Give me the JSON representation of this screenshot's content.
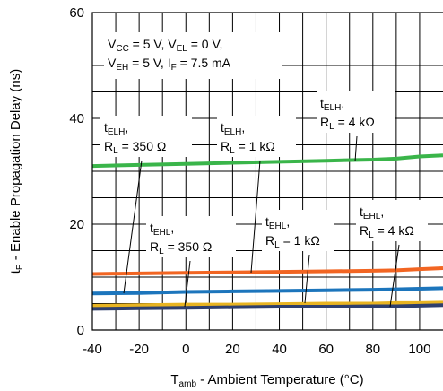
{
  "chart_data": {
    "type": "line",
    "title": "",
    "xlabel": {
      "main": "T",
      "sub": "amb",
      "rest": " - Ambient Temperature (°C)"
    },
    "ylabel": {
      "main": "t",
      "sub": "E",
      "rest": " - Enable Propagation Delay (ns)"
    },
    "xlim": [
      -40,
      110
    ],
    "ylim": [
      0,
      60
    ],
    "xticks": [
      -40,
      -20,
      0,
      20,
      40,
      60,
      80,
      100
    ],
    "yticks": [
      0,
      20,
      40,
      60
    ],
    "grid": {
      "x_minor": 10,
      "y_minor": 5,
      "on": true
    },
    "x": [
      -40,
      -20,
      0,
      20,
      40,
      60,
      80,
      90,
      100,
      110
    ],
    "series": [
      {
        "values": [
          31.0,
          31.2,
          31.4,
          31.6,
          31.8,
          32.0,
          32.2,
          32.4,
          32.8,
          33.0
        ],
        "color": "#3ab54a"
      },
      {
        "values": [
          10.6,
          10.7,
          10.8,
          10.9,
          11.0,
          11.1,
          11.2,
          11.3,
          11.5,
          11.7
        ],
        "color": "#f26522"
      },
      {
        "values": [
          6.9,
          7.0,
          7.2,
          7.3,
          7.4,
          7.5,
          7.6,
          7.7,
          7.8,
          7.9
        ],
        "color": "#1c75bc"
      },
      {
        "values": [
          4.6,
          4.7,
          4.8,
          4.8,
          4.9,
          5.0,
          5.0,
          5.1,
          5.1,
          5.2
        ],
        "color": "#e8b422"
      },
      {
        "values": [
          4.0,
          4.1,
          4.2,
          4.3,
          4.4,
          4.4,
          4.5,
          4.5,
          4.6,
          4.7
        ],
        "color": "#2e3f6e"
      }
    ],
    "annotations": [
      {
        "lines": [
          [
            {
              "t": "V"
            },
            {
              "t": "CC",
              "sub": true
            },
            {
              "t": " = 5 V, V"
            },
            {
              "t": "EL",
              "sub": true
            },
            {
              "t": " = 0 V,"
            }
          ],
          [
            {
              "t": "V"
            },
            {
              "t": "EH",
              "sub": true
            },
            {
              "t": " = 5 V, I"
            },
            {
              "t": "F",
              "sub": true
            },
            {
              "t": " = 7.5 mA"
            }
          ]
        ]
      },
      {
        "lines": [
          [
            {
              "t": "t"
            },
            {
              "t": "ELH",
              "sub": true
            },
            {
              "t": ","
            }
          ],
          [
            {
              "t": "R"
            },
            {
              "t": "L",
              "sub": true
            },
            {
              "t": " = 4 kΩ"
            }
          ]
        ]
      },
      {
        "lines": [
          [
            {
              "t": "t"
            },
            {
              "t": "ELH",
              "sub": true
            },
            {
              "t": ","
            }
          ],
          [
            {
              "t": "R"
            },
            {
              "t": "L",
              "sub": true
            },
            {
              "t": " = 350 Ω"
            }
          ]
        ]
      },
      {
        "lines": [
          [
            {
              "t": "t"
            },
            {
              "t": "ELH",
              "sub": true
            },
            {
              "t": ","
            }
          ],
          [
            {
              "t": "R"
            },
            {
              "t": "L",
              "sub": true
            },
            {
              "t": " = 1 kΩ"
            }
          ]
        ]
      },
      {
        "lines": [
          [
            {
              "t": "t"
            },
            {
              "t": "EHL",
              "sub": true
            },
            {
              "t": ","
            }
          ],
          [
            {
              "t": "R"
            },
            {
              "t": "L",
              "sub": true
            },
            {
              "t": " = 350 Ω"
            }
          ]
        ]
      },
      {
        "lines": [
          [
            {
              "t": "t"
            },
            {
              "t": "EHL",
              "sub": true
            },
            {
              "t": ","
            }
          ],
          [
            {
              "t": "R"
            },
            {
              "t": "L",
              "sub": true
            },
            {
              "t": " = 1 kΩ"
            }
          ]
        ]
      },
      {
        "lines": [
          [
            {
              "t": "t"
            },
            {
              "t": "EHL",
              "sub": true
            },
            {
              "t": ","
            }
          ],
          [
            {
              "t": "R"
            },
            {
              "t": "L",
              "sub": true
            },
            {
              "t": " = 4 kΩ"
            }
          ]
        ]
      }
    ]
  }
}
